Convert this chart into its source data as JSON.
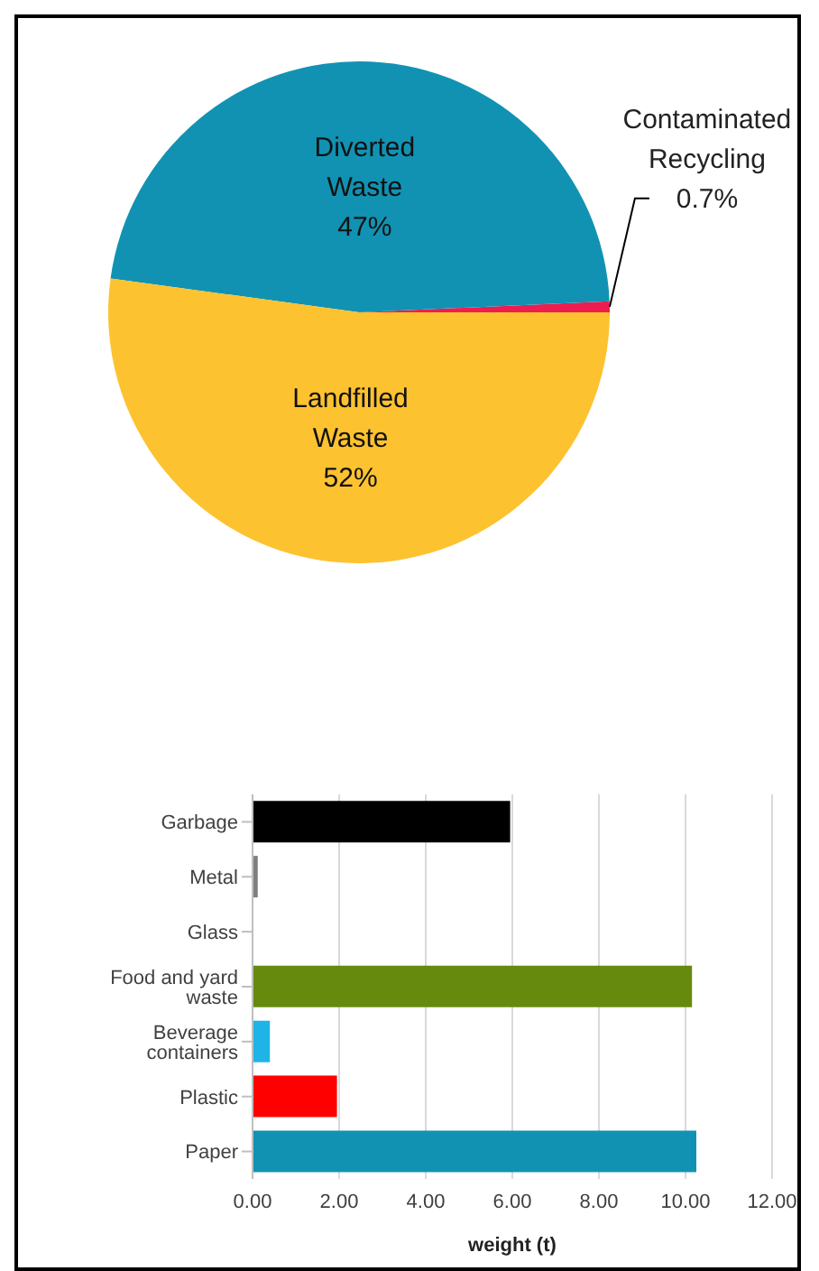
{
  "chart_data": [
    {
      "type": "pie",
      "categories": [
        "Contaminated Recycling",
        "Diverted Waste",
        "Landfilled Waste"
      ],
      "values": [
        0.7,
        47,
        52
      ],
      "colors": [
        "#ee1d4f",
        "#1192b3",
        "#fdc230"
      ],
      "value_labels": [
        "0.7%",
        "47%",
        "52%"
      ]
    },
    {
      "type": "bar",
      "orientation": "horizontal",
      "categories": [
        "Garbage",
        "Metal",
        "Glass",
        "Food and yard waste",
        "Beverage containers",
        "Plastic",
        "Paper"
      ],
      "values": [
        5.95,
        0.12,
        0,
        10.15,
        0.4,
        1.95,
        10.25
      ],
      "colors": [
        "#000000",
        "#7f7f7f",
        null,
        "#668a0e",
        "#1fb4e8",
        "#ff0000",
        "#1192b3"
      ],
      "xlabel": "weight (t)",
      "xlim": [
        0,
        12
      ],
      "xticks": [
        {
          "value": 0,
          "label": "0.00"
        },
        {
          "value": 2,
          "label": "2.00"
        },
        {
          "value": 4,
          "label": "4.00"
        },
        {
          "value": 6,
          "label": "6.00"
        },
        {
          "value": 8,
          "label": "8.00"
        },
        {
          "value": 10,
          "label": "10.00"
        },
        {
          "value": 12,
          "label": "12.00"
        }
      ],
      "grid": "x"
    }
  ]
}
